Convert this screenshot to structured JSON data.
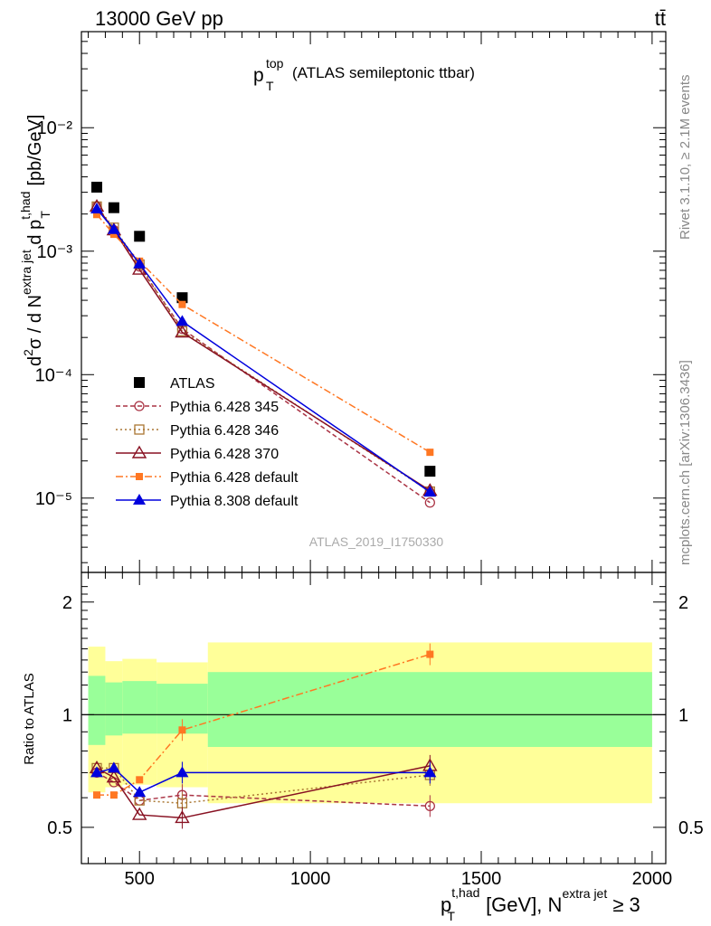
{
  "header": {
    "energy_label": "13000 GeV pp",
    "process_label": "tt̄",
    "title_main": "p",
    "title_sup": "top",
    "title_sub": "T",
    "title_rest": "(ATLAS semileptonic ttbar)",
    "side_rivet": "Rivet 3.1.10, ≥ 2.1M events",
    "side_mcplots": "mcplots.cern.ch [arXiv:1306.3436]",
    "analysis_id": "ATLAS_2019_I1750330"
  },
  "axes": {
    "ylabel_main": "d²σ / d N^{extra jet} d p_T^{t,had} [pb/GeV]",
    "ylabel_ratio": "Ratio to ATLAS",
    "xlabel": "p_T^{t,had} [GeV], N^{extra jet} ≥ 3",
    "x_ticks": [
      "500",
      "1000",
      "1500",
      "2000"
    ],
    "y_ticks_main": [
      "10⁻⁵",
      "10⁻⁴",
      "10⁻³",
      "10⁻²"
    ],
    "y_ticks_ratio": [
      "0.5",
      "1",
      "2"
    ]
  },
  "legend": [
    {
      "label": "ATLAS"
    },
    {
      "label": "Pythia 6.428 345"
    },
    {
      "label": "Pythia 6.428 346"
    },
    {
      "label": "Pythia 6.428 370"
    },
    {
      "label": "Pythia 6.428 default"
    },
    {
      "label": "Pythia 8.308 default"
    }
  ],
  "chart_data": {
    "type": "scatter",
    "xlim": [
      330,
      2040
    ],
    "ylim_main": [
      2.5e-06,
      0.06
    ],
    "ylim_ratio": [
      0.4,
      2.4
    ],
    "y_scale": "log",
    "x_bins": [
      [
        350,
        400
      ],
      [
        400,
        450
      ],
      [
        450,
        550
      ],
      [
        550,
        700
      ],
      [
        700,
        2000
      ]
    ],
    "band_inner": [
      [
        0.83,
        1.27
      ],
      [
        0.88,
        1.22
      ],
      [
        0.89,
        1.23
      ],
      [
        0.89,
        1.21
      ],
      [
        0.82,
        1.3
      ]
    ],
    "band_outer": [
      [
        0.62,
        1.52
      ],
      [
        0.64,
        1.39
      ],
      [
        0.65,
        1.41
      ],
      [
        0.64,
        1.38
      ],
      [
        0.58,
        1.56
      ]
    ],
    "x": [
      375,
      425,
      500,
      625,
      1350
    ],
    "series": [
      {
        "name": "ATLAS",
        "color": "#000000",
        "marker": "square",
        "values": [
          0.0033,
          0.00225,
          0.00132,
          0.00042,
          1.65e-05
        ],
        "ratio": [
          1,
          1,
          1,
          1,
          1
        ]
      },
      {
        "name": "Pythia 6.428 345",
        "color": "#aa3344",
        "marker": "circle-open",
        "dash": "5,3",
        "values": [
          0.0023,
          0.00148,
          0.00075,
          0.000235,
          9.2e-06
        ],
        "ratio": [
          0.7,
          0.66,
          0.59,
          0.61,
          0.57
        ]
      },
      {
        "name": "Pythia 6.428 346",
        "color": "#aa7733",
        "marker": "square-open",
        "dash": "2,3",
        "values": [
          0.0023,
          0.00155,
          0.00078,
          0.000225,
          1.13e-05
        ],
        "ratio": [
          0.72,
          0.72,
          0.59,
          0.58,
          0.69
        ]
      },
      {
        "name": "Pythia 6.428 370",
        "color": "#881122",
        "marker": "triangle-open",
        "dash": "",
        "values": [
          0.0023,
          0.00148,
          0.00071,
          0.00022,
          1.15e-05
        ],
        "ratio": [
          0.72,
          0.68,
          0.54,
          0.53,
          0.73
        ]
      },
      {
        "name": "Pythia 6.428 default",
        "color": "#ff7722",
        "marker": "square-small",
        "dash": "8,3,2,3",
        "values": [
          0.00198,
          0.00137,
          0.00083,
          0.00037,
          2.35e-05
        ],
        "ratio": [
          0.61,
          0.61,
          0.67,
          0.91,
          1.45
        ]
      },
      {
        "name": "Pythia 8.308 default",
        "color": "#0000dd",
        "marker": "triangle",
        "dash": "",
        "values": [
          0.0022,
          0.0015,
          0.00079,
          0.00027,
          1.12e-05
        ],
        "ratio": [
          0.7,
          0.72,
          0.62,
          0.7,
          0.7
        ]
      }
    ]
  }
}
